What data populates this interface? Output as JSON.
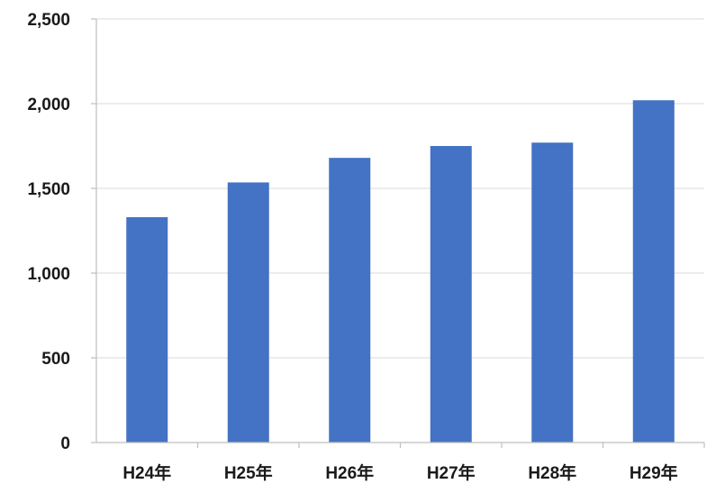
{
  "chart_data": {
    "type": "bar",
    "categories": [
      "H24年",
      "H25年",
      "H26年",
      "H27年",
      "H28年",
      "H29年"
    ],
    "values": [
      1330,
      1535,
      1680,
      1750,
      1770,
      2020
    ],
    "ylim": [
      0,
      2500
    ],
    "yticks": [
      0,
      500,
      1000,
      1500,
      2000,
      2500
    ],
    "ytick_labels": [
      "0",
      "500",
      "1,000",
      "1,500",
      "2,000",
      "2,500"
    ],
    "grid": true,
    "bar_color": "#4472C4"
  }
}
